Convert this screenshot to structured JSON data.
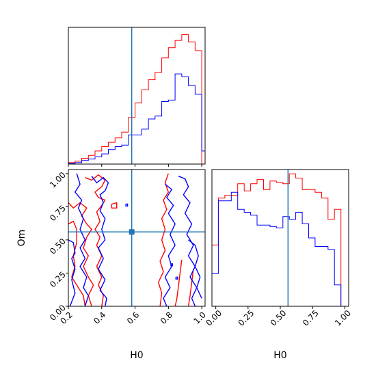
{
  "chart_data": {
    "type": "corner",
    "parameters": [
      "H0",
      "Om"
    ],
    "colors": {
      "red_series": "#ff0000",
      "blue_series": "#0000ff",
      "truth": "#1f77b4"
    },
    "truth": {
      "H0": 0.58,
      "Om": 0.56
    },
    "panels": [
      {
        "id": "h0-histogram",
        "type": "histogram",
        "parameter": "H0",
        "xlim": [
          0.2,
          1.02
        ],
        "bin_edges": [
          0.2,
          0.24,
          0.28,
          0.32,
          0.36,
          0.4,
          0.44,
          0.48,
          0.52,
          0.56,
          0.6,
          0.64,
          0.68,
          0.72,
          0.76,
          0.8,
          0.84,
          0.88,
          0.92,
          0.96,
          1.0,
          1.02
        ],
        "series": [
          {
            "color": "red",
            "values": [
              0.1,
              0.2,
              0.4,
              0.6,
              0.9,
              1.2,
              1.5,
              1.8,
              2.2,
              3.2,
              4.2,
              5.1,
              5.8,
              6.3,
              7.3,
              8.0,
              8.5,
              8.9,
              8.4,
              7.8,
              0.0
            ]
          },
          {
            "color": "blue",
            "values": [
              0.05,
              0.1,
              0.25,
              0.35,
              0.5,
              0.7,
              1.0,
              1.2,
              1.3,
              2.0,
              2.0,
              2.4,
              3.1,
              3.3,
              4.3,
              4.4,
              6.2,
              6.0,
              5.4,
              4.8,
              0.9
            ]
          }
        ]
      },
      {
        "id": "om-histogram",
        "type": "histogram",
        "parameter": "Om",
        "xlim": [
          -0.03,
          1.03
        ],
        "xticks": [
          "0.00",
          "0.25",
          "0.50",
          "0.75",
          "1.00"
        ],
        "bin_edges": [
          -0.03,
          0.02,
          0.07,
          0.12,
          0.17,
          0.22,
          0.27,
          0.32,
          0.37,
          0.42,
          0.47,
          0.52,
          0.57,
          0.62,
          0.67,
          0.72,
          0.77,
          0.82,
          0.87,
          0.92,
          0.97,
          1.02
        ],
        "series": [
          {
            "color": "red",
            "values": [
              4.3,
              7.6,
              7.8,
              7.8,
              8.6,
              8.1,
              8.6,
              8.9,
              8.2,
              8.8,
              8.7,
              8.6,
              9.3,
              9.0,
              8.2,
              8.2,
              8.0,
              7.6,
              6.1,
              6.8,
              0.0
            ]
          },
          {
            "color": "blue",
            "values": [
              2.3,
              7.4,
              7.4,
              8.0,
              6.8,
              6.6,
              6.4,
              5.7,
              5.7,
              5.6,
              5.5,
              6.3,
              6.1,
              6.6,
              5.8,
              4.8,
              4.2,
              4.2,
              4.0,
              1.5,
              0.0
            ]
          }
        ]
      },
      {
        "id": "h0-om-contour",
        "type": "contour",
        "xlabel": "H0",
        "ylabel": "Om",
        "xlim": [
          0.2,
          1.02
        ],
        "ylim": [
          0.0,
          1.03
        ],
        "xticks": [
          "0.2",
          "0.4",
          "0.6",
          "0.8",
          "1.0"
        ],
        "yticks": [
          "0.00",
          "0.25",
          "0.50",
          "0.75",
          "1.00"
        ],
        "contours": [
          {
            "color": "red",
            "path": [
              [
                0.2,
                0.62
              ],
              [
                0.23,
                0.64
              ],
              [
                0.25,
                0.58
              ],
              [
                0.25,
                0.48
              ],
              [
                0.23,
                0.38
              ],
              [
                0.24,
                0.3
              ],
              [
                0.22,
                0.22
              ],
              [
                0.26,
                0.14
              ],
              [
                0.29,
                0.08
              ],
              [
                0.3,
                0.0
              ]
            ]
          },
          {
            "color": "red",
            "path": [
              [
                0.2,
                0.78
              ],
              [
                0.23,
                0.74
              ],
              [
                0.27,
                0.78
              ],
              [
                0.31,
                0.74
              ],
              [
                0.28,
                0.68
              ],
              [
                0.31,
                0.62
              ],
              [
                0.34,
                0.58
              ],
              [
                0.31,
                0.52
              ],
              [
                0.29,
                0.44
              ],
              [
                0.32,
                0.38
              ],
              [
                0.29,
                0.3
              ],
              [
                0.32,
                0.22
              ],
              [
                0.35,
                0.16
              ],
              [
                0.32,
                0.08
              ],
              [
                0.34,
                0.0
              ]
            ]
          },
          {
            "color": "red",
            "path": [
              [
                0.3,
                0.97
              ],
              [
                0.34,
                0.95
              ],
              [
                0.38,
                0.99
              ],
              [
                0.42,
                0.95
              ],
              [
                0.4,
                0.9
              ],
              [
                0.36,
                0.86
              ],
              [
                0.38,
                0.82
              ],
              [
                0.42,
                0.8
              ],
              [
                0.4,
                0.76
              ],
              [
                0.37,
                0.71
              ],
              [
                0.39,
                0.64
              ],
              [
                0.36,
                0.58
              ],
              [
                0.39,
                0.52
              ],
              [
                0.37,
                0.46
              ],
              [
                0.4,
                0.38
              ],
              [
                0.37,
                0.3
              ],
              [
                0.4,
                0.22
              ],
              [
                0.38,
                0.16
              ],
              [
                0.41,
                0.08
              ],
              [
                0.4,
                0.0
              ]
            ]
          },
          {
            "color": "red",
            "path": [
              [
                0.8,
                1.0
              ],
              [
                0.78,
                0.93
              ],
              [
                0.8,
                0.86
              ],
              [
                0.77,
                0.8
              ],
              [
                0.79,
                0.73
              ],
              [
                0.76,
                0.66
              ],
              [
                0.78,
                0.58
              ],
              [
                0.76,
                0.5
              ],
              [
                0.78,
                0.42
              ],
              [
                0.75,
                0.34
              ],
              [
                0.77,
                0.26
              ],
              [
                0.74,
                0.18
              ],
              [
                0.76,
                0.1
              ],
              [
                0.75,
                0.0
              ]
            ]
          },
          {
            "color": "red",
            "path": [
              [
                0.88,
                0.35
              ],
              [
                0.87,
                0.25
              ],
              [
                0.86,
                0.15
              ],
              [
                0.85,
                0.05
              ],
              [
                0.84,
                0.0
              ]
            ]
          },
          {
            "color": "red",
            "path": [
              [
                0.95,
                0.28
              ],
              [
                0.94,
                0.18
              ],
              [
                0.93,
                0.08
              ],
              [
                0.92,
                0.0
              ]
            ]
          },
          {
            "color": "red",
            "path": [
              [
                0.46,
                0.77
              ],
              [
                0.49,
                0.78
              ],
              [
                0.49,
                0.74
              ],
              [
                0.46,
                0.74
              ],
              [
                0.46,
                0.77
              ]
            ]
          },
          {
            "color": "blue",
            "path": [
              [
                0.2,
                0.5
              ],
              [
                0.23,
                0.48
              ],
              [
                0.24,
                0.4
              ],
              [
                0.22,
                0.36
              ],
              [
                0.24,
                0.28
              ],
              [
                0.22,
                0.2
              ],
              [
                0.24,
                0.1
              ],
              [
                0.21,
                0.0
              ]
            ]
          },
          {
            "color": "blue",
            "path": [
              [
                0.25,
                1.0
              ],
              [
                0.27,
                0.92
              ],
              [
                0.24,
                0.86
              ],
              [
                0.28,
                0.8
              ],
              [
                0.26,
                0.74
              ],
              [
                0.29,
                0.66
              ],
              [
                0.27,
                0.58
              ],
              [
                0.3,
                0.5
              ],
              [
                0.27,
                0.44
              ],
              [
                0.3,
                0.36
              ],
              [
                0.27,
                0.3
              ],
              [
                0.31,
                0.22
              ],
              [
                0.29,
                0.14
              ],
              [
                0.32,
                0.08
              ],
              [
                0.3,
                0.0
              ]
            ]
          },
          {
            "color": "blue",
            "path": [
              [
                0.34,
                0.98
              ],
              [
                0.37,
                0.93
              ],
              [
                0.41,
                0.97
              ],
              [
                0.44,
                0.93
              ],
              [
                0.42,
                0.87
              ],
              [
                0.39,
                0.84
              ],
              [
                0.41,
                0.78
              ],
              [
                0.39,
                0.72
              ],
              [
                0.42,
                0.66
              ],
              [
                0.4,
                0.58
              ],
              [
                0.42,
                0.5
              ],
              [
                0.38,
                0.44
              ],
              [
                0.41,
                0.36
              ],
              [
                0.38,
                0.28
              ],
              [
                0.42,
                0.2
              ],
              [
                0.39,
                0.12
              ],
              [
                0.43,
                0.06
              ],
              [
                0.42,
                0.0
              ]
            ]
          },
          {
            "color": "blue",
            "path": [
              [
                0.78,
                0.92
              ],
              [
                0.82,
                0.88
              ],
              [
                0.79,
                0.82
              ],
              [
                0.83,
                0.76
              ],
              [
                0.8,
                0.7
              ],
              [
                0.84,
                0.62
              ],
              [
                0.81,
                0.54
              ],
              [
                0.84,
                0.46
              ],
              [
                0.8,
                0.38
              ],
              [
                0.82,
                0.3
              ],
              [
                0.78,
                0.22
              ],
              [
                0.81,
                0.14
              ],
              [
                0.77,
                0.06
              ],
              [
                0.79,
                0.0
              ]
            ]
          },
          {
            "color": "blue",
            "path": [
              [
                0.86,
                0.98
              ],
              [
                0.9,
                0.96
              ],
              [
                0.92,
                0.9
              ],
              [
                0.89,
                0.84
              ],
              [
                0.93,
                0.78
              ],
              [
                0.9,
                0.7
              ],
              [
                0.94,
                0.62
              ],
              [
                0.91,
                0.54
              ],
              [
                0.95,
                0.46
              ],
              [
                0.92,
                0.38
              ],
              [
                0.96,
                0.3
              ],
              [
                0.93,
                0.22
              ],
              [
                0.97,
                0.14
              ],
              [
                0.94,
                0.06
              ],
              [
                0.96,
                0.0
              ]
            ]
          },
          {
            "color": "blue",
            "path": [
              [
                0.92,
                0.5
              ],
              [
                0.96,
                0.46
              ],
              [
                0.98,
                0.38
              ],
              [
                0.96,
                0.3
              ],
              [
                0.99,
                0.22
              ],
              [
                0.97,
                0.14
              ],
              [
                1.0,
                0.06
              ]
            ]
          },
          {
            "color": "blue",
            "path": [
              [
                0.545,
                0.77
              ],
              [
                0.555,
                0.77
              ],
              [
                0.555,
                0.755
              ],
              [
                0.545,
                0.755
              ],
              [
                0.545,
                0.77
              ]
            ]
          },
          {
            "color": "blue",
            "path": [
              [
                0.815,
                0.32
              ],
              [
                0.825,
                0.32
              ],
              [
                0.825,
                0.305
              ],
              [
                0.815,
                0.305
              ],
              [
                0.815,
                0.32
              ]
            ]
          },
          {
            "color": "blue",
            "path": [
              [
                0.845,
                0.22
              ],
              [
                0.855,
                0.22
              ],
              [
                0.855,
                0.205
              ],
              [
                0.845,
                0.205
              ],
              [
                0.845,
                0.22
              ]
            ]
          }
        ]
      }
    ]
  }
}
